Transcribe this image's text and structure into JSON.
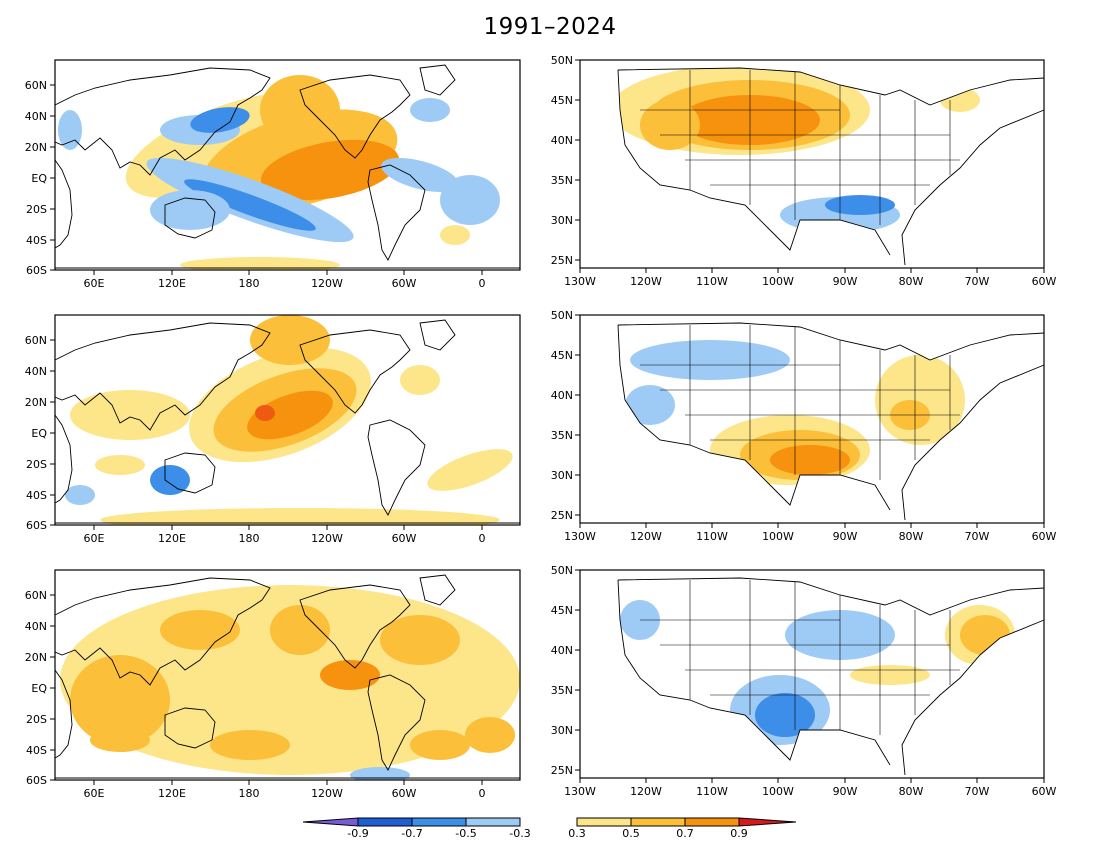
{
  "title": "1991–2024",
  "colors": {
    "neg_09": "#7a5bd6",
    "neg_07": "#1f5fd6",
    "neg_05": "#3d8ee8",
    "neg_03": "#9dcbf5",
    "pos_03": "#fde58a",
    "pos_05": "#fbbf3a",
    "pos_07": "#f7920e",
    "pos_09": "#ee5a12",
    "pos_max": "#d7191c",
    "land": "#ffffff",
    "border": "#000000"
  },
  "global_axes": {
    "lat_labels": [
      "60N",
      "40N",
      "20N",
      "EQ",
      "20S",
      "40S",
      "60S"
    ],
    "lon_labels": [
      "60E",
      "120E",
      "180",
      "120W",
      "60W",
      "0"
    ]
  },
  "us_axes": {
    "lat_labels": [
      "50N",
      "45N",
      "40N",
      "35N",
      "30N",
      "25N"
    ],
    "lon_labels": [
      "130W",
      "120W",
      "110W",
      "100W",
      "90W",
      "80W",
      "70W",
      "60W"
    ]
  },
  "colorbar": {
    "neg_labels": [
      "-0.9",
      "-0.7",
      "-0.5",
      "-0.3"
    ],
    "pos_labels": [
      "0.3",
      "0.5",
      "0.7",
      "0.9"
    ]
  }
}
